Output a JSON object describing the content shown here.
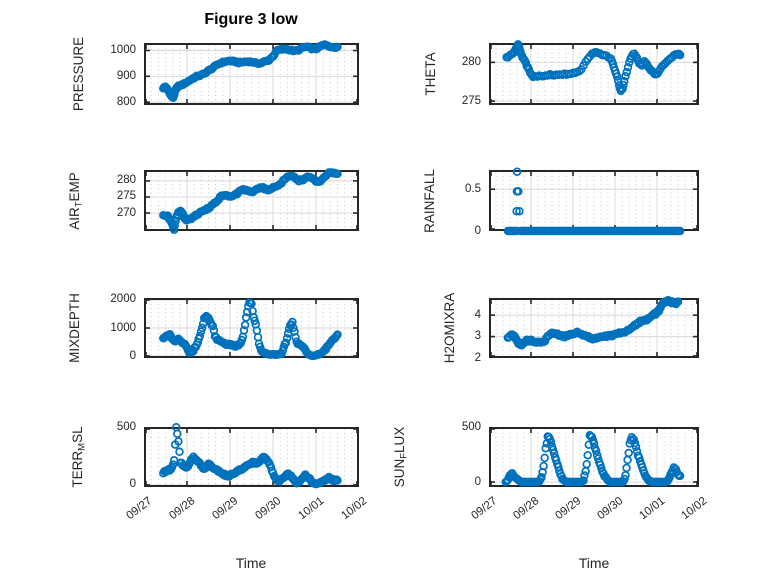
{
  "figure": {
    "title": "Figure 3 low",
    "xlabel": "Time",
    "x_tick_labels": [
      "09/27",
      "09/28",
      "09/29",
      "09/30",
      "10/01",
      "10/02"
    ],
    "marker_color": "#0072BD",
    "axis_color": "#262626",
    "grid_color": "#d9d9d9",
    "minor_grid_color": "#c3c3c3"
  },
  "chart_data": [
    {
      "type": "scatter",
      "name": "pressure",
      "col": "left",
      "row": 0,
      "ylabel": [
        {
          "t": "PRESSURE"
        }
      ],
      "yticks": [
        800,
        900,
        1000
      ],
      "ylim": [
        789,
        1029
      ],
      "xlim": [
        0,
        5
      ],
      "jitter": 2.5,
      "relative": false,
      "interp": 3,
      "x": [
        0.45,
        0.5,
        0.55,
        0.6,
        0.64,
        0.68,
        0.72,
        0.76,
        0.8,
        0.9,
        1.0,
        1.1,
        1.2,
        1.3,
        1.4,
        1.5,
        1.6,
        1.7,
        1.8,
        1.9,
        2.0,
        2.1,
        2.2,
        2.3,
        2.4,
        2.5,
        2.6,
        2.7,
        2.8,
        2.9,
        3.0,
        3.1,
        3.2,
        3.3,
        3.4,
        3.5,
        3.6,
        3.7,
        3.8,
        3.9,
        4.0,
        4.1,
        4.2,
        4.3,
        4.4,
        4.5
      ],
      "y": [
        855,
        860,
        848,
        835,
        822,
        818,
        840,
        855,
        862,
        868,
        878,
        888,
        898,
        903,
        910,
        922,
        932,
        945,
        952,
        957,
        960,
        957,
        953,
        955,
        957,
        956,
        951,
        950,
        957,
        962,
        978,
        1000,
        1004,
        1006,
        1002,
        998,
        1002,
        1012,
        1014,
        1007,
        1006,
        1016,
        1022,
        1018,
        1011,
        1012
      ]
    },
    {
      "type": "scatter",
      "name": "theta",
      "col": "right",
      "row": 0,
      "ylabel": [
        {
          "t": "THETA"
        }
      ],
      "yticks": [
        275,
        280
      ],
      "ylim": [
        274.5,
        282.5
      ],
      "xlim": [
        0,
        5
      ],
      "jitter": 0.1,
      "relative": false,
      "interp": 2,
      "x": [
        0.42,
        0.48,
        0.55,
        0.6,
        0.65,
        0.69,
        0.72,
        0.76,
        0.8,
        0.85,
        0.9,
        0.95,
        1.0,
        1.05,
        1.15,
        1.25,
        1.35,
        1.45,
        1.55,
        1.65,
        1.75,
        1.85,
        1.95,
        2.05,
        2.15,
        2.25,
        2.35,
        2.45,
        2.52,
        2.6,
        2.7,
        2.8,
        2.9,
        2.95,
        3.0,
        3.05,
        3.1,
        3.14,
        3.18,
        3.22,
        3.28,
        3.34,
        3.4,
        3.46,
        3.52,
        3.58,
        3.64,
        3.7,
        3.76,
        3.82,
        3.88,
        3.94,
        3.98,
        4.05,
        4.12,
        4.2,
        4.28,
        4.36,
        4.44,
        4.5,
        4.55
      ],
      "y": [
        280.6,
        280.8,
        281.0,
        281.3,
        281.8,
        282.3,
        281.9,
        281.2,
        280.6,
        280.2,
        279.6,
        279.0,
        278.4,
        278.2,
        278.2,
        278.3,
        278.3,
        278.4,
        278.4,
        278.4,
        278.4,
        278.5,
        278.5,
        278.6,
        278.8,
        279.5,
        280.5,
        281.1,
        281.3,
        281.2,
        281.0,
        280.8,
        280.4,
        279.8,
        279.0,
        278.2,
        277.0,
        276.3,
        276.6,
        277.5,
        278.8,
        280.0,
        280.8,
        281.2,
        280.6,
        279.8,
        279.6,
        280.2,
        279.8,
        279.2,
        278.8,
        278.5,
        278.4,
        278.9,
        279.4,
        279.9,
        280.3,
        280.7,
        281.0,
        281.1,
        280.9
      ]
    },
    {
      "type": "scatter",
      "name": "air_temp",
      "col": "left",
      "row": 1,
      "ylabel": [
        {
          "t": "AIR"
        },
        {
          "t": "T",
          "sub": true
        },
        {
          "t": "EMP"
        }
      ],
      "yticks": [
        270,
        275,
        280
      ],
      "ylim": [
        264.4,
        283.4
      ],
      "xlim": [
        0,
        5
      ],
      "jitter": 0.25,
      "relative": false,
      "interp": 3,
      "x": [
        0.45,
        0.55,
        0.6,
        0.65,
        0.7,
        0.75,
        0.8,
        0.85,
        0.9,
        0.95,
        1.0,
        1.1,
        1.2,
        1.3,
        1.4,
        1.5,
        1.6,
        1.7,
        1.8,
        1.9,
        2.0,
        2.1,
        2.2,
        2.3,
        2.4,
        2.5,
        2.6,
        2.7,
        2.8,
        2.9,
        3.0,
        3.1,
        3.2,
        3.3,
        3.4,
        3.5,
        3.6,
        3.7,
        3.8,
        3.9,
        4.0,
        4.1,
        4.2,
        4.3,
        4.4,
        4.5
      ],
      "y": [
        269.5,
        269.0,
        268.0,
        266.8,
        264.9,
        268.5,
        270.3,
        270.6,
        269.6,
        268.2,
        267.8,
        268.4,
        269.2,
        270.2,
        270.8,
        271.5,
        272.5,
        273.8,
        275.3,
        275.6,
        275.1,
        275.4,
        276.4,
        277.4,
        277.1,
        276.6,
        277.1,
        278.1,
        277.6,
        277.1,
        277.9,
        278.4,
        279.4,
        280.9,
        281.5,
        281.1,
        280.1,
        280.4,
        281.4,
        281.1,
        279.7,
        280.1,
        281.4,
        282.4,
        282.6,
        282.2
      ]
    },
    {
      "type": "scatter",
      "name": "rainfall",
      "col": "right",
      "row": 1,
      "ylabel": [
        {
          "t": "RAINFALL"
        }
      ],
      "yticks": [
        0,
        0.5
      ],
      "ylim": [
        0,
        0.73
      ],
      "xlim": [
        0,
        5
      ],
      "jitter": 0,
      "relative": false,
      "interp": 3,
      "x": [
        0.45,
        0.55,
        0.65,
        0.67,
        0.75,
        0.85,
        0.95,
        1.05,
        1.15,
        1.25,
        1.35,
        1.45,
        1.55,
        1.65,
        1.75,
        1.85,
        1.95,
        2.05,
        2.15,
        2.25,
        2.35,
        2.45,
        2.55,
        2.65,
        2.75,
        2.85,
        2.95,
        3.05,
        3.15,
        3.25,
        3.35,
        3.45,
        3.55,
        3.65,
        3.75,
        3.85,
        3.95,
        4.05,
        4.15,
        4.25,
        4.35,
        4.45,
        4.55
      ],
      "y": [
        0,
        0,
        0,
        0.71,
        0,
        0,
        0,
        0,
        0,
        0,
        0,
        0,
        0,
        0,
        0,
        0,
        0,
        0,
        0,
        0,
        0,
        0,
        0,
        0,
        0,
        0,
        0,
        0,
        0,
        0,
        0,
        0,
        0,
        0,
        0,
        0,
        0,
        0,
        0,
        0,
        0,
        0,
        0
      ]
    },
    {
      "type": "scatter",
      "name": "mixdepth",
      "col": "left",
      "row": 2,
      "ylabel": [
        {
          "t": "MIXDEPTH"
        }
      ],
      "yticks": [
        0,
        1000,
        2000
      ],
      "ylim": [
        -70,
        2070
      ],
      "xlim": [
        0,
        5
      ],
      "jitter": 35,
      "relative": true,
      "interp": 2,
      "x": [
        0.45,
        0.5,
        0.55,
        0.6,
        0.65,
        0.7,
        0.75,
        0.8,
        0.85,
        0.9,
        0.95,
        1.0,
        1.05,
        1.1,
        1.15,
        1.2,
        1.25,
        1.3,
        1.35,
        1.4,
        1.45,
        1.5,
        1.55,
        1.6,
        1.65,
        1.7,
        1.75,
        1.8,
        1.85,
        1.9,
        1.95,
        2.0,
        2.05,
        2.1,
        2.15,
        2.2,
        2.25,
        2.3,
        2.35,
        2.4,
        2.45,
        2.5,
        2.55,
        2.6,
        2.65,
        2.7,
        2.75,
        2.8,
        2.85,
        2.9,
        2.95,
        3.0,
        3.05,
        3.1,
        3.15,
        3.2,
        3.25,
        3.3,
        3.35,
        3.4,
        3.45,
        3.5,
        3.55,
        3.6,
        3.65,
        3.7,
        3.75,
        3.8,
        3.85,
        3.9,
        3.95,
        4.0,
        4.05,
        4.1,
        4.15,
        4.2,
        4.25,
        4.3,
        4.35,
        4.4,
        4.45,
        4.5
      ],
      "y": [
        650,
        700,
        730,
        750,
        650,
        520,
        560,
        600,
        520,
        480,
        400,
        300,
        150,
        110,
        200,
        350,
        500,
        700,
        1000,
        1350,
        1400,
        1330,
        1200,
        1080,
        700,
        600,
        550,
        500,
        450,
        430,
        400,
        420,
        400,
        380,
        360,
        400,
        500,
        700,
        1100,
        1600,
        1880,
        1850,
        1400,
        1150,
        650,
        300,
        150,
        100,
        80,
        60,
        50,
        60,
        50,
        60,
        55,
        90,
        300,
        500,
        800,
        1100,
        1180,
        900,
        500,
        420,
        350,
        300,
        200,
        100,
        40,
        10,
        10,
        30,
        60,
        90,
        130,
        200,
        300,
        400,
        500,
        600,
        680,
        750
      ]
    },
    {
      "type": "scatter",
      "name": "h2omixra",
      "col": "right",
      "row": 2,
      "ylabel": [
        {
          "t": "H2OMIXRA"
        }
      ],
      "yticks": [
        2,
        3,
        4
      ],
      "ylim": [
        2,
        4.8
      ],
      "xlim": [
        0,
        5
      ],
      "jitter": 0.05,
      "relative": false,
      "interp": 3,
      "x": [
        0.45,
        0.55,
        0.6,
        0.65,
        0.7,
        0.75,
        0.8,
        0.85,
        0.9,
        1.0,
        1.1,
        1.2,
        1.3,
        1.4,
        1.5,
        1.6,
        1.7,
        1.8,
        1.9,
        2.0,
        2.1,
        2.2,
        2.3,
        2.4,
        2.5,
        2.6,
        2.7,
        2.8,
        2.9,
        3.0,
        3.1,
        3.2,
        3.3,
        3.4,
        3.5,
        3.6,
        3.7,
        3.75,
        3.8,
        3.9,
        4.0,
        4.05,
        4.1,
        4.15,
        4.2,
        4.25,
        4.3,
        4.35,
        4.4,
        4.45,
        4.5
      ],
      "y": [
        3.0,
        3.05,
        3.0,
        2.9,
        2.7,
        2.6,
        2.65,
        2.75,
        2.8,
        2.8,
        2.75,
        2.7,
        2.75,
        3.0,
        3.2,
        3.15,
        3.05,
        3.0,
        3.1,
        3.15,
        3.2,
        3.1,
        3.0,
        2.95,
        2.9,
        2.95,
        3.0,
        3.0,
        3.05,
        3.1,
        3.15,
        3.2,
        3.3,
        3.45,
        3.55,
        3.7,
        3.8,
        3.75,
        3.85,
        4.0,
        4.1,
        4.25,
        4.4,
        4.55,
        4.6,
        4.65,
        4.65,
        4.6,
        4.6,
        4.55,
        4.6
      ]
    },
    {
      "type": "scatter",
      "name": "terr_msl",
      "col": "left",
      "row": 3,
      "ylabel": [
        {
          "t": "TERR"
        },
        {
          "t": "M",
          "sub": true
        },
        {
          "t": "SL"
        }
      ],
      "yticks": [
        0,
        500
      ],
      "ylim": [
        -18,
        508
      ],
      "xlim": [
        0,
        5
      ],
      "jitter": 8,
      "relative": true,
      "interp": 2,
      "x": [
        0.45,
        0.5,
        0.55,
        0.6,
        0.65,
        0.7,
        0.75,
        0.8,
        0.85,
        0.9,
        0.95,
        1.0,
        1.05,
        1.1,
        1.15,
        1.2,
        1.25,
        1.3,
        1.35,
        1.4,
        1.45,
        1.5,
        1.55,
        1.6,
        1.65,
        1.7,
        1.75,
        1.8,
        1.85,
        1.9,
        1.95,
        2.0,
        2.05,
        2.1,
        2.15,
        2.2,
        2.25,
        2.3,
        2.35,
        2.4,
        2.45,
        2.5,
        2.55,
        2.6,
        2.65,
        2.7,
        2.75,
        2.8,
        2.85,
        2.9,
        2.95,
        3.0,
        3.05,
        3.1,
        3.15,
        3.2,
        3.25,
        3.3,
        3.35,
        3.4,
        3.45,
        3.5,
        3.55,
        3.6,
        3.65,
        3.7,
        3.75,
        3.8,
        3.85,
        3.9,
        3.95,
        4.0,
        4.05,
        4.1,
        4.15,
        4.2,
        4.25,
        4.3,
        4.35,
        4.4,
        4.45,
        4.5
      ],
      "y": [
        110,
        120,
        125,
        135,
        155,
        210,
        500,
        380,
        200,
        170,
        160,
        150,
        180,
        220,
        245,
        230,
        205,
        185,
        155,
        135,
        160,
        185,
        170,
        150,
        140,
        130,
        120,
        105,
        95,
        85,
        75,
        85,
        95,
        105,
        115,
        125,
        135,
        145,
        155,
        170,
        180,
        190,
        200,
        185,
        195,
        215,
        235,
        245,
        225,
        200,
        155,
        105,
        65,
        45,
        35,
        45,
        65,
        85,
        95,
        85,
        65,
        35,
        15,
        25,
        45,
        65,
        85,
        75,
        55,
        25,
        15,
        8,
        12,
        22,
        32,
        42,
        52,
        62,
        52,
        42,
        35,
        45
      ]
    },
    {
      "type": "scatter",
      "name": "sun_flux",
      "col": "right",
      "row": 3,
      "ylabel": [
        {
          "t": "SUN"
        },
        {
          "t": "F",
          "sub": true
        },
        {
          "t": "LUX"
        }
      ],
      "yticks": [
        0,
        500
      ],
      "ylim": [
        -46,
        509
      ],
      "xlim": [
        0,
        5
      ],
      "jitter": 8,
      "relative": true,
      "interp": 2,
      "x": [
        0.4,
        0.45,
        0.5,
        0.55,
        0.6,
        0.65,
        0.7,
        0.75,
        0.8,
        0.85,
        0.9,
        0.95,
        1.0,
        1.05,
        1.1,
        1.15,
        1.2,
        1.25,
        1.3,
        1.35,
        1.4,
        1.45,
        1.5,
        1.55,
        1.6,
        1.65,
        1.7,
        1.75,
        1.8,
        1.85,
        1.9,
        1.95,
        2.0,
        2.05,
        2.1,
        2.15,
        2.2,
        2.25,
        2.3,
        2.35,
        2.4,
        2.45,
        2.5,
        2.55,
        2.6,
        2.65,
        2.7,
        2.75,
        2.8,
        2.85,
        2.9,
        2.95,
        3.0,
        3.05,
        3.1,
        3.15,
        3.2,
        3.25,
        3.3,
        3.35,
        3.4,
        3.45,
        3.5,
        3.55,
        3.6,
        3.65,
        3.7,
        3.75,
        3.8,
        3.85,
        3.9,
        3.95,
        4.0,
        4.05,
        4.1,
        4.15,
        4.2,
        4.25,
        4.3,
        4.35,
        4.4,
        4.45,
        4.5,
        4.55
      ],
      "y": [
        0,
        20,
        60,
        75,
        55,
        35,
        15,
        5,
        0,
        0,
        0,
        0,
        0,
        0,
        0,
        0,
        5,
        40,
        150,
        310,
        420,
        405,
        330,
        265,
        200,
        135,
        75,
        30,
        10,
        0,
        0,
        0,
        0,
        0,
        0,
        0,
        0,
        15,
        95,
        250,
        430,
        420,
        350,
        285,
        215,
        155,
        100,
        60,
        30,
        10,
        0,
        0,
        0,
        0,
        0,
        0,
        5,
        55,
        200,
        350,
        410,
        385,
        320,
        250,
        185,
        130,
        80,
        40,
        15,
        5,
        0,
        0,
        0,
        0,
        0,
        0,
        0,
        10,
        40,
        90,
        130,
        115,
        75,
        55
      ]
    }
  ]
}
